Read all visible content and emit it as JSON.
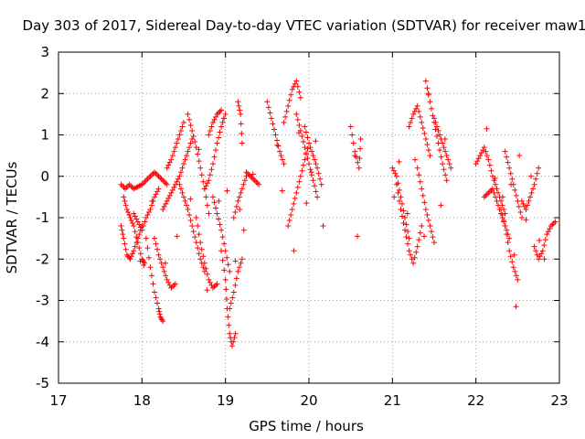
{
  "chart_data": {
    "type": "scatter",
    "title": "Day 303 of 2017, Sidereal Day-to-day VTEC variation (SDTVAR) for receiver maw1",
    "xlabel": "GPS time / hours",
    "ylabel": "SDTVAR / TECUs",
    "xlim": [
      17,
      23
    ],
    "ylim": [
      -5,
      3
    ],
    "grid": true,
    "marker": "+",
    "color": "#ff0000",
    "x_ticks": [
      17,
      18,
      19,
      20,
      21,
      22,
      23
    ],
    "x_tick_labels": [
      "17",
      "18",
      "19",
      "20",
      "21",
      "22",
      "23"
    ],
    "y_ticks": [
      -5,
      -4,
      -3,
      -2,
      -1,
      0,
      1,
      2,
      3
    ],
    "y_tick_labels": [
      "-5",
      "-4",
      "-3",
      "-2",
      "-1",
      "0",
      "1",
      "2",
      "3"
    ],
    "traces": [
      {
        "x": [
          17.75,
          17.8,
          17.85,
          17.9,
          17.95,
          18.0,
          18.05,
          18.1,
          18.15,
          18.2,
          18.25,
          18.3
        ],
        "y": [
          -0.2,
          -0.3,
          -0.2,
          -0.3,
          -0.25,
          -0.2,
          -0.1,
          0.0,
          0.1,
          0.0,
          -0.1,
          -0.2
        ]
      },
      {
        "x": [
          17.75,
          17.78,
          17.82,
          17.86,
          17.9,
          17.95,
          18.0
        ],
        "y": [
          -1.2,
          -1.5,
          -1.9,
          -2.0,
          -1.8,
          -1.5,
          -1.2
        ]
      },
      {
        "x": [
          17.78,
          17.82,
          17.86,
          17.9,
          17.95,
          18.0,
          18.03
        ],
        "y": [
          -0.5,
          -0.8,
          -1.0,
          -1.2,
          -1.6,
          -2.0,
          -2.1
        ]
      },
      {
        "x": [
          17.9,
          17.95,
          18.0,
          18.05,
          18.1,
          18.15,
          18.2
        ],
        "y": [
          -0.9,
          -1.1,
          -1.3,
          -1.0,
          -0.8,
          -0.5,
          -0.3
        ]
      },
      {
        "x": [
          18.05,
          18.1,
          18.15,
          18.2,
          18.22,
          18.25
        ],
        "y": [
          -1.5,
          -2.2,
          -2.8,
          -3.2,
          -3.4,
          -3.5
        ]
      },
      {
        "x": [
          18.15,
          18.2,
          18.25,
          18.3,
          18.35,
          18.4
        ],
        "y": [
          -1.5,
          -1.9,
          -2.2,
          -2.5,
          -2.7,
          -2.6
        ]
      },
      {
        "x": [
          18.25,
          18.3,
          18.35,
          18.4,
          18.45,
          18.5,
          18.55,
          18.6
        ],
        "y": [
          -0.8,
          -0.6,
          -0.4,
          -0.2,
          0.0,
          0.3,
          0.6,
          0.9
        ]
      },
      {
        "x": [
          18.3,
          18.35,
          18.4,
          18.45,
          18.5
        ],
        "y": [
          0.2,
          0.4,
          0.7,
          1.0,
          1.3
        ]
      },
      {
        "x": [
          18.45,
          18.5,
          18.55,
          18.6,
          18.65,
          18.7,
          18.75
        ],
        "y": [
          -0.2,
          -0.5,
          -0.8,
          -1.2,
          -1.6,
          -2.0,
          -2.3
        ]
      },
      {
        "x": [
          18.55,
          18.6,
          18.65,
          18.7,
          18.75,
          18.8
        ],
        "y": [
          1.5,
          1.1,
          0.7,
          0.2,
          -0.3,
          -0.9
        ]
      },
      {
        "x": [
          18.65,
          18.7,
          18.75,
          18.8,
          18.85,
          18.9
        ],
        "y": [
          -1.0,
          -1.6,
          -2.1,
          -2.5,
          -2.7,
          -2.6
        ]
      },
      {
        "x": [
          18.75,
          18.8,
          18.85,
          18.9,
          18.95,
          19.0
        ],
        "y": [
          -0.3,
          -0.1,
          0.3,
          0.8,
          1.2,
          1.5
        ]
      },
      {
        "x": [
          18.8,
          18.85,
          18.9,
          18.95
        ],
        "y": [
          1.0,
          1.3,
          1.5,
          1.6
        ]
      },
      {
        "x": [
          18.85,
          18.9,
          18.95,
          19.0,
          19.05
        ],
        "y": [
          -0.5,
          -0.9,
          -1.3,
          -1.8,
          -2.3
        ]
      },
      {
        "x": [
          18.95,
          19.0,
          19.02,
          19.05,
          19.08,
          19.12
        ],
        "y": [
          -1.8,
          -2.5,
          -3.2,
          -3.8,
          -4.1,
          -3.8
        ]
      },
      {
        "x": [
          19.05,
          19.1,
          19.15,
          19.2
        ],
        "y": [
          -3.2,
          -2.8,
          -2.3,
          -2.0
        ]
      },
      {
        "x": [
          19.1,
          19.15,
          19.2,
          19.25
        ],
        "y": [
          -1.0,
          -0.6,
          -0.3,
          0.0
        ]
      },
      {
        "x": [
          19.15,
          19.18,
          19.2
        ],
        "y": [
          1.8,
          1.5,
          0.8
        ]
      },
      {
        "x": [
          19.25,
          19.3,
          19.35,
          19.4
        ],
        "y": [
          0.1,
          0.0,
          -0.1,
          -0.2
        ]
      },
      {
        "x": [
          19.5,
          19.55,
          19.6,
          19.65,
          19.7
        ],
        "y": [
          1.8,
          1.4,
          1.0,
          0.6,
          0.3
        ]
      },
      {
        "x": [
          19.7,
          19.75,
          19.8,
          19.85,
          19.9
        ],
        "y": [
          1.3,
          1.7,
          2.1,
          2.3,
          1.9
        ]
      },
      {
        "x": [
          19.75,
          19.8,
          19.85,
          19.9,
          19.95,
          20.0
        ],
        "y": [
          -1.2,
          -0.8,
          -0.4,
          0.0,
          0.4,
          0.8
        ]
      },
      {
        "x": [
          19.85,
          19.9,
          19.95,
          20.0,
          20.05,
          20.1
        ],
        "y": [
          1.5,
          1.1,
          0.7,
          0.3,
          -0.1,
          -0.5
        ]
      },
      {
        "x": [
          19.95,
          20.0,
          20.05,
          20.1,
          20.15
        ],
        "y": [
          1.2,
          0.8,
          0.5,
          0.2,
          -0.2
        ]
      },
      {
        "x": [
          20.5,
          20.55,
          20.6,
          20.62
        ],
        "y": [
          1.2,
          0.6,
          0.2,
          0.9
        ]
      },
      {
        "x": [
          21.0,
          21.05,
          21.1,
          21.15,
          21.2
        ],
        "y": [
          0.2,
          0.0,
          -0.5,
          -1.0,
          -1.5
        ]
      },
      {
        "x": [
          21.05,
          21.1,
          21.15,
          21.2,
          21.25,
          21.3,
          21.35
        ],
        "y": [
          -0.2,
          -0.8,
          -1.3,
          -1.8,
          -2.1,
          -1.7,
          -1.2
        ]
      },
      {
        "x": [
          21.2,
          21.25,
          21.3,
          21.35,
          21.4,
          21.45
        ],
        "y": [
          1.2,
          1.5,
          1.7,
          1.3,
          0.9,
          0.5
        ]
      },
      {
        "x": [
          21.3,
          21.35,
          21.4,
          21.45,
          21.5
        ],
        "y": [
          0.2,
          -0.3,
          -0.8,
          -1.2,
          -1.6
        ]
      },
      {
        "x": [
          21.4,
          21.45,
          21.5,
          21.55,
          21.6,
          21.65
        ],
        "y": [
          2.3,
          1.8,
          1.3,
          0.8,
          0.3,
          -0.1
        ]
      },
      {
        "x": [
          21.5,
          21.55,
          21.6,
          21.65,
          21.7
        ],
        "y": [
          1.4,
          1.1,
          0.8,
          0.5,
          0.2
        ]
      },
      {
        "x": [
          22.0,
          22.05,
          22.1,
          22.15,
          22.2,
          22.25,
          22.3,
          22.35
        ],
        "y": [
          0.3,
          0.5,
          0.7,
          0.4,
          0.0,
          -0.3,
          -0.6,
          -0.9
        ]
      },
      {
        "x": [
          22.1,
          22.15,
          22.2,
          22.25,
          22.3,
          22.35,
          22.4
        ],
        "y": [
          -0.5,
          -0.4,
          -0.3,
          -0.6,
          -0.9,
          -1.2,
          -1.5
        ]
      },
      {
        "x": [
          22.3,
          22.35,
          22.4,
          22.45,
          22.5
        ],
        "y": [
          -0.8,
          -1.2,
          -1.8,
          -2.2,
          -2.5
        ]
      },
      {
        "x": [
          22.35,
          22.4,
          22.45,
          22.5,
          22.55
        ],
        "y": [
          0.6,
          0.2,
          -0.2,
          -0.6,
          -1.0
        ]
      },
      {
        "x": [
          22.55,
          22.6,
          22.65,
          22.7,
          22.75
        ],
        "y": [
          -0.6,
          -0.8,
          -0.5,
          -0.2,
          0.2
        ]
      },
      {
        "x": [
          22.7,
          22.75,
          22.8,
          22.85,
          22.9,
          22.95
        ],
        "y": [
          -1.7,
          -2.0,
          -1.8,
          -1.4,
          -1.2,
          -1.1
        ]
      }
    ],
    "extra_points": [
      {
        "x": 17.98,
        "y": -2.05
      },
      {
        "x": 18.02,
        "y": -2.15
      },
      {
        "x": 18.12,
        "y": -0.6
      },
      {
        "x": 18.28,
        "y": -2.1
      },
      {
        "x": 18.42,
        "y": -1.45
      },
      {
        "x": 18.58,
        "y": -0.55
      },
      {
        "x": 18.68,
        "y": 0.65
      },
      {
        "x": 18.78,
        "y": -2.75
      },
      {
        "x": 18.92,
        "y": -0.6
      },
      {
        "x": 18.98,
        "y": 1.4
      },
      {
        "x": 19.02,
        "y": -0.35
      },
      {
        "x": 19.12,
        "y": -2.05
      },
      {
        "x": 19.17,
        "y": -0.8
      },
      {
        "x": 19.22,
        "y": -1.3
      },
      {
        "x": 19.33,
        "y": 0.05
      },
      {
        "x": 19.62,
        "y": 0.75
      },
      {
        "x": 19.68,
        "y": -0.35
      },
      {
        "x": 19.82,
        "y": -1.8
      },
      {
        "x": 19.88,
        "y": 1.05
      },
      {
        "x": 19.97,
        "y": -0.65
      },
      {
        "x": 20.03,
        "y": 0.1
      },
      {
        "x": 20.08,
        "y": 0.85
      },
      {
        "x": 20.17,
        "y": -1.2
      },
      {
        "x": 20.55,
        "y": 0.5
      },
      {
        "x": 20.58,
        "y": -1.45
      },
      {
        "x": 21.02,
        "y": -0.5
      },
      {
        "x": 21.08,
        "y": 0.35
      },
      {
        "x": 21.18,
        "y": -0.9
      },
      {
        "x": 21.27,
        "y": 0.4
      },
      {
        "x": 21.38,
        "y": -1.45
      },
      {
        "x": 21.43,
        "y": 2.0
      },
      {
        "x": 21.58,
        "y": -0.7
      },
      {
        "x": 21.63,
        "y": 0.9
      },
      {
        "x": 22.13,
        "y": 1.15
      },
      {
        "x": 22.23,
        "y": -0.05
      },
      {
        "x": 22.32,
        "y": -0.5
      },
      {
        "x": 22.42,
        "y": -0.2
      },
      {
        "x": 22.46,
        "y": -1.9
      },
      {
        "x": 22.48,
        "y": -3.15
      },
      {
        "x": 22.52,
        "y": 0.5
      },
      {
        "x": 22.6,
        "y": -1.05
      },
      {
        "x": 22.66,
        "y": 0.0
      },
      {
        "x": 22.76,
        "y": -1.55
      },
      {
        "x": 22.82,
        "y": -2.0
      }
    ]
  }
}
